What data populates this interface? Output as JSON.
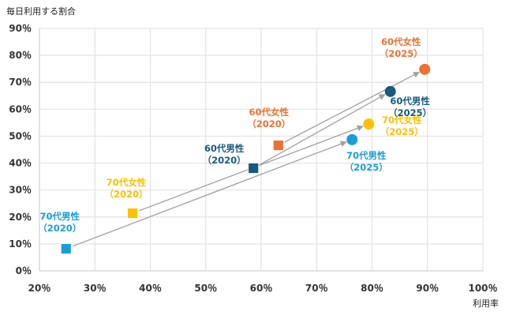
{
  "chart_data": {
    "type": "scatter",
    "title": "",
    "ylabel": "毎日利用する割合",
    "xlabel": "利用率",
    "xlim": [
      20,
      100
    ],
    "ylim": [
      0,
      90
    ],
    "x_ticks": [
      "20％",
      "30％",
      "40％",
      "50％",
      "60％",
      "70％",
      "80％",
      "90％",
      "100％"
    ],
    "y_ticks": [
      "0％",
      "10％",
      "20％",
      "30％",
      "40％",
      "50％",
      "60％",
      "70％",
      "80％",
      "90％"
    ],
    "grid": true,
    "legend": "none",
    "series": [
      {
        "name": "70代男性",
        "color": "#1a9ed8",
        "points": [
          {
            "label": "70代男性",
            "year": "（2020）",
            "x": 24.8,
            "y": 8.2,
            "marker": "square"
          },
          {
            "label": "70代男性",
            "year": "（2025）",
            "x": 76.4,
            "y": 48.7,
            "marker": "circle"
          }
        ]
      },
      {
        "name": "70代女性",
        "color": "#ffc000",
        "points": [
          {
            "label": "70代女性",
            "year": "（2020）",
            "x": 36.8,
            "y": 21.4,
            "marker": "square"
          },
          {
            "label": "70代女性",
            "year": "（2025）",
            "x": 79.4,
            "y": 54.5,
            "marker": "circle"
          }
        ]
      },
      {
        "name": "60代男性",
        "color": "#175a7e",
        "points": [
          {
            "label": "60代男性",
            "year": "（2020）",
            "x": 58.6,
            "y": 38.1,
            "marker": "square"
          },
          {
            "label": "60代男性",
            "year": "（2025）",
            "x": 83.3,
            "y": 66.6,
            "marker": "circle"
          }
        ]
      },
      {
        "name": "60代女性",
        "color": "#ed7131",
        "points": [
          {
            "label": "60代女性",
            "year": "（2020）",
            "x": 63.1,
            "y": 46.6,
            "marker": "square"
          },
          {
            "label": "60代女性",
            "year": "（2025）",
            "x": 89.5,
            "y": 74.8,
            "marker": "circle"
          }
        ]
      }
    ],
    "arrow_color": "#a0a0a0"
  }
}
